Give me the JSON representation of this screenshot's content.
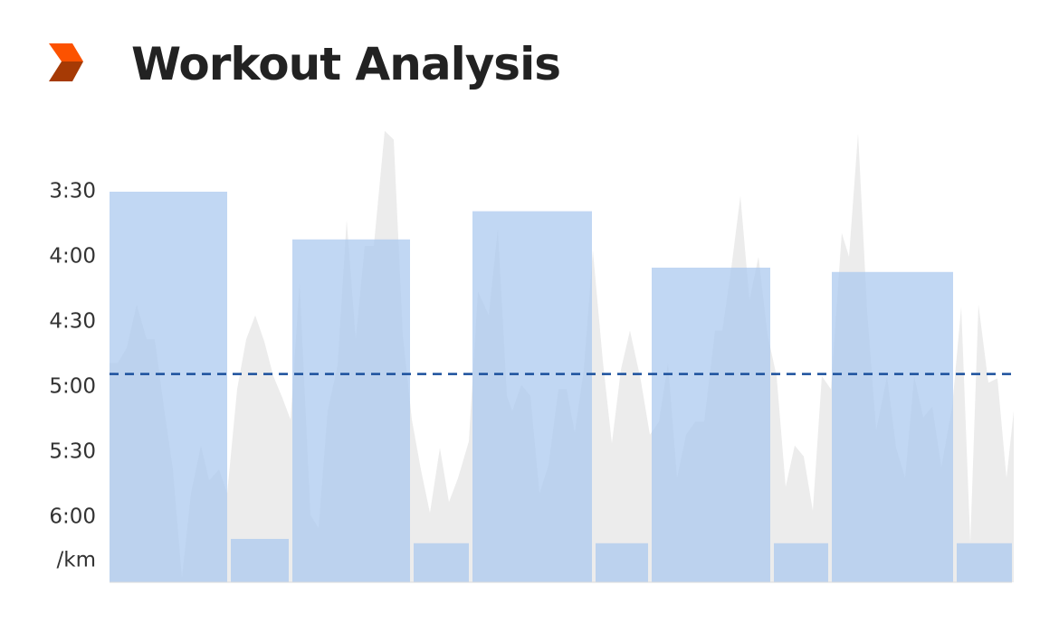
{
  "chart_data": {
    "type": "bar",
    "title": "Workout Analysis",
    "y_label": "/km",
    "ylim": [
      390,
      180
    ],
    "yticks": [
      {
        "value": 210,
        "label": "3:30"
      },
      {
        "value": 240,
        "label": "4:00"
      },
      {
        "value": 270,
        "label": "4:30"
      },
      {
        "value": 300,
        "label": "5:00"
      },
      {
        "value": 330,
        "label": "5:30"
      },
      {
        "value": 360,
        "label": "6:00"
      }
    ],
    "xlim": [
      0,
      997
    ],
    "laps": {
      "color": "#a9c8ef",
      "bins": [
        0,
        132,
        200,
        334,
        399,
        535,
        597,
        732,
        796,
        934,
        997
      ],
      "values": [
        210,
        370,
        232,
        372,
        219,
        372,
        245,
        372,
        247,
        372
      ]
    },
    "pace": {
      "color": "#ececec",
      "x": [
        0,
        9,
        19,
        30,
        41,
        50,
        60,
        70,
        80,
        90,
        101,
        110,
        121,
        130,
        141,
        151,
        161,
        171,
        181,
        191,
        200,
        210,
        222,
        231,
        241,
        252,
        262,
        272,
        282,
        292,
        304,
        314,
        324,
        334,
        344,
        354,
        365,
        375,
        385,
        397,
        407,
        419,
        429,
        439,
        445,
        455,
        465,
        475,
        485,
        496,
        505,
        514,
        524,
        534,
        545,
        555,
        565,
        575,
        587,
        597,
        607,
        617,
        627,
        637,
        647,
        657,
        669,
        677,
        687,
        697,
        707,
        717,
        727,
        737,
        747,
        757,
        767,
        777,
        787,
        797,
        809,
        817,
        827,
        837,
        847,
        859,
        869,
        879,
        889,
        899,
        909,
        919,
        931,
        941,
        951,
        960,
        971,
        981,
        991,
        999
      ],
      "values": [
        289,
        289,
        282,
        262,
        278,
        278,
        309,
        338,
        388,
        349,
        327,
        343,
        338,
        349,
        301,
        278,
        267,
        279,
        295,
        305,
        315,
        252,
        359,
        365,
        311,
        290,
        223,
        278,
        235,
        235,
        182,
        186,
        276,
        315,
        338,
        358,
        328,
        353,
        342,
        325,
        256,
        267,
        227,
        304,
        311,
        299,
        304,
        349,
        336,
        301,
        301,
        321,
        292,
        237,
        288,
        326,
        292,
        274,
        297,
        322,
        316,
        289,
        342,
        322,
        316,
        316,
        274,
        274,
        245,
        212,
        260,
        240,
        276,
        295,
        346,
        327,
        332,
        357,
        295,
        301,
        229,
        240,
        183,
        265,
        320,
        295,
        328,
        342,
        295,
        314,
        309,
        337,
        309,
        263,
        372,
        262,
        298,
        296,
        342,
        311
      ]
    },
    "average": 294,
    "average_color": "#1a4f9c"
  }
}
